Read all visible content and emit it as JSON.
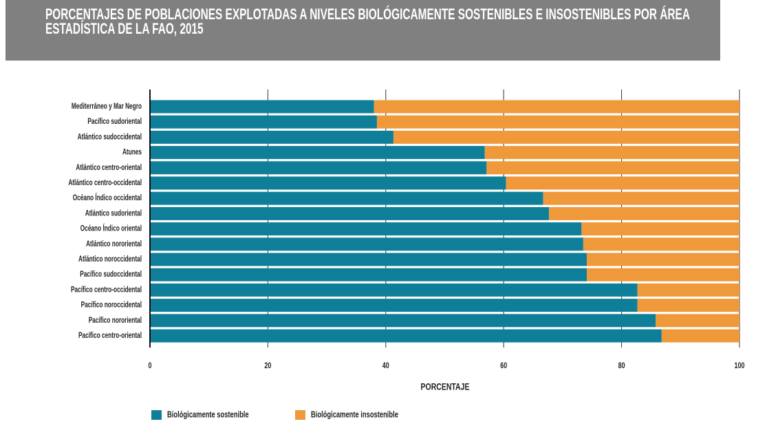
{
  "chart_data": {
    "type": "stacked-barh",
    "title": "PORCENTAJES DE POBLACIONES EXPLOTADAS A NIVELES BIOLÓGICAMENTE SOSTENIBLES E INSOSTENIBLES POR ÁREA ESTADÍSTICA DE LA FAO, 2015",
    "xlabel": "PORCENTAJE",
    "categories": [
      "Mediterráneo y Mar Negro",
      "Pacífico sudoriental",
      "Atlántico sudoccidental",
      "Atunes",
      "Atlántico centro-oriental",
      "Atlántico centro-occidental",
      "Océano Índico occidental",
      "Atlántico sudoriental",
      "Océano Índico oriental",
      "Atlántico nororiental",
      "Atlántico noroccidental",
      "Pacífico sudoccidental",
      "Pacífico centro-occidental",
      "Pacífico noroccidental",
      "Pacífico nororiental",
      "Pacífico centro-oriental"
    ],
    "series": [
      {
        "name": "Biológicamente sostenible",
        "color": "#0f7f99",
        "values": [
          38,
          38.5,
          41.3,
          56.8,
          57.1,
          60.4,
          66.7,
          67.7,
          73.2,
          73.5,
          74.1,
          74.1,
          82.7,
          82.7,
          85.8,
          86.8
        ]
      },
      {
        "name": "Biológicamente insostenible",
        "color": "#f0993b",
        "values": [
          62,
          61.5,
          58.7,
          43.2,
          42.9,
          39.6,
          33.3,
          32.3,
          26.8,
          26.5,
          25.9,
          25.9,
          17.3,
          17.3,
          14.2,
          13.2
        ]
      }
    ],
    "xlim": [
      0,
      100
    ],
    "xticks": [
      0,
      20,
      40,
      60,
      80,
      100
    ],
    "grid": true,
    "legend": "bottom"
  }
}
